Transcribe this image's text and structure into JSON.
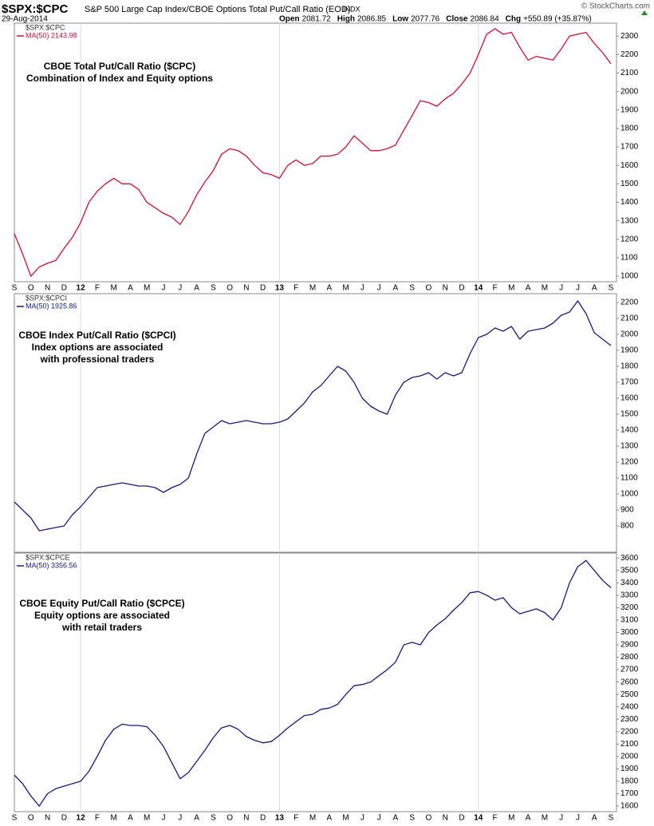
{
  "header": {
    "symbol": "$SPX:$CPC",
    "description": "S&P 500 Large Cap Index/CBOE Options Total Put/Call Ratio (EOD)",
    "exchange": "INDX",
    "date": "29-Aug-2014",
    "copyright": "© StockCharts.com",
    "quote": [
      {
        "label": "Open",
        "value": "2081.72"
      },
      {
        "label": "High",
        "value": "2086.85"
      },
      {
        "label": "Low",
        "value": "2077.76"
      },
      {
        "label": "Close",
        "value": "2086.84"
      },
      {
        "label": "Chg",
        "value": "+550.89 (+35.87%)"
      }
    ]
  },
  "chart_data": [
    {
      "type": "line",
      "symbol": "$SPX:$CPC",
      "annotations": [
        "CBOE Total Put/Call Ratio ($CPC)",
        "Combination of Index and Equity options"
      ],
      "show_x_labels": true,
      "categories": [
        "S",
        null,
        "O",
        null,
        "N",
        null,
        "D",
        null,
        "12",
        null,
        "F",
        null,
        "M",
        null,
        "A",
        null,
        "M",
        null,
        "J",
        null,
        "J",
        null,
        "A",
        null,
        "S",
        null,
        "O",
        null,
        "N",
        null,
        "D",
        null,
        "13",
        null,
        "F",
        null,
        "M",
        null,
        "A",
        null,
        "M",
        null,
        "J",
        null,
        "J",
        null,
        "A",
        null,
        "S",
        null,
        "O",
        null,
        "N",
        null,
        "D",
        null,
        "14",
        null,
        "F",
        null,
        "M",
        null,
        "A",
        null,
        "M",
        null,
        "J",
        null,
        "J",
        null,
        "A",
        null,
        "S"
      ],
      "series": [
        {
          "name": "MA(50) 2143.98",
          "color": "#cc1133",
          "values": [
            1230,
            1120,
            1000,
            1050,
            1070,
            1085,
            1150,
            1210,
            1290,
            1400,
            1460,
            1500,
            1530,
            1500,
            1500,
            1470,
            1400,
            1370,
            1340,
            1320,
            1280,
            1350,
            1440,
            1510,
            1570,
            1660,
            1690,
            1680,
            1650,
            1600,
            1560,
            1550,
            1530,
            1600,
            1630,
            1600,
            1610,
            1650,
            1650,
            1660,
            1700,
            1760,
            1720,
            1680,
            1680,
            1690,
            1710,
            1790,
            1870,
            1950,
            1940,
            1920,
            1960,
            1990,
            2040,
            2100,
            2200,
            2310,
            2340,
            2310,
            2320,
            2240,
            2170,
            2190,
            2180,
            2170,
            2230,
            2300,
            2310,
            2320,
            2260,
            2210,
            2150
          ]
        }
      ],
      "ylim": [
        970,
        2370
      ],
      "yticks": [
        1000,
        1100,
        1200,
        1300,
        1400,
        1500,
        1600,
        1700,
        1800,
        1900,
        2000,
        2100,
        2200,
        2300
      ]
    },
    {
      "type": "line",
      "symbol": "$SPX:$CPCI",
      "annotations": [
        "CBOE Index Put/Call Ratio ($CPCI)",
        "Index options are associated",
        "with professional traders"
      ],
      "show_x_labels": false,
      "categories": [
        "S",
        null,
        "O",
        null,
        "N",
        null,
        "D",
        null,
        "12",
        null,
        "F",
        null,
        "M",
        null,
        "A",
        null,
        "M",
        null,
        "J",
        null,
        "J",
        null,
        "A",
        null,
        "S",
        null,
        "O",
        null,
        "N",
        null,
        "D",
        null,
        "13",
        null,
        "F",
        null,
        "M",
        null,
        "A",
        null,
        "M",
        null,
        "J",
        null,
        "J",
        null,
        "A",
        null,
        "S",
        null,
        "O",
        null,
        "N",
        null,
        "D",
        null,
        "14",
        null,
        "F",
        null,
        "M",
        null,
        "A",
        null,
        "M",
        null,
        "J",
        null,
        "J",
        null,
        "A",
        null,
        "S"
      ],
      "series": [
        {
          "name": "MA(50) 1925.86",
          "color": "#1a1a80",
          "values": [
            950,
            900,
            850,
            770,
            780,
            790,
            800,
            870,
            920,
            980,
            1040,
            1050,
            1060,
            1070,
            1060,
            1050,
            1050,
            1040,
            1010,
            1040,
            1060,
            1100,
            1250,
            1380,
            1420,
            1460,
            1440,
            1450,
            1460,
            1450,
            1440,
            1440,
            1450,
            1470,
            1520,
            1570,
            1640,
            1680,
            1740,
            1800,
            1770,
            1700,
            1600,
            1550,
            1520,
            1500,
            1620,
            1700,
            1730,
            1740,
            1760,
            1720,
            1760,
            1740,
            1760,
            1880,
            1980,
            2000,
            2040,
            2020,
            2050,
            1970,
            2020,
            2030,
            2040,
            2070,
            2120,
            2140,
            2210,
            2130,
            2010,
            1970,
            1930
          ]
        }
      ],
      "ylim": [
        635,
        2255
      ],
      "yticks": [
        800,
        900,
        1000,
        1100,
        1200,
        1300,
        1400,
        1500,
        1600,
        1700,
        1800,
        1900,
        2000,
        2100,
        2200
      ]
    },
    {
      "type": "line",
      "symbol": "$SPX:$CPCE",
      "annotations": [
        "CBOE Equity Put/Call Ratio ($CPCE)",
        "Equity options are associated",
        "with retail traders"
      ],
      "show_x_labels": true,
      "categories": [
        "S",
        null,
        "O",
        null,
        "N",
        null,
        "D",
        null,
        "12",
        null,
        "F",
        null,
        "M",
        null,
        "A",
        null,
        "M",
        null,
        "J",
        null,
        "J",
        null,
        "A",
        null,
        "S",
        null,
        "O",
        null,
        "N",
        null,
        "D",
        null,
        "13",
        null,
        "F",
        null,
        "M",
        null,
        "A",
        null,
        "M",
        null,
        "J",
        null,
        "J",
        null,
        "A",
        null,
        "S",
        null,
        "O",
        null,
        "N",
        null,
        "D",
        null,
        "14",
        null,
        "F",
        null,
        "M",
        null,
        "A",
        null,
        "M",
        null,
        "J",
        null,
        "J",
        null,
        "A",
        null,
        "S"
      ],
      "series": [
        {
          "name": "MA(50) 3356.56",
          "color": "#1a1a80",
          "values": [
            1850,
            1780,
            1680,
            1600,
            1700,
            1740,
            1760,
            1780,
            1800,
            1880,
            2000,
            2130,
            2220,
            2260,
            2250,
            2250,
            2240,
            2170,
            2080,
            1950,
            1820,
            1870,
            1960,
            2050,
            2150,
            2230,
            2250,
            2220,
            2160,
            2130,
            2110,
            2120,
            2170,
            2230,
            2280,
            2330,
            2340,
            2380,
            2390,
            2420,
            2500,
            2570,
            2580,
            2600,
            2650,
            2700,
            2760,
            2900,
            2920,
            2900,
            3000,
            3060,
            3110,
            3180,
            3240,
            3320,
            3330,
            3300,
            3260,
            3280,
            3200,
            3150,
            3170,
            3190,
            3160,
            3100,
            3200,
            3400,
            3530,
            3580,
            3500,
            3420,
            3360
          ]
        }
      ],
      "ylim": [
        1555,
        3640
      ],
      "yticks": [
        1600,
        1700,
        1800,
        1900,
        2000,
        2100,
        2200,
        2300,
        2400,
        2500,
        2600,
        2700,
        2800,
        2900,
        3000,
        3100,
        3200,
        3300,
        3400,
        3500,
        3600
      ]
    }
  ]
}
